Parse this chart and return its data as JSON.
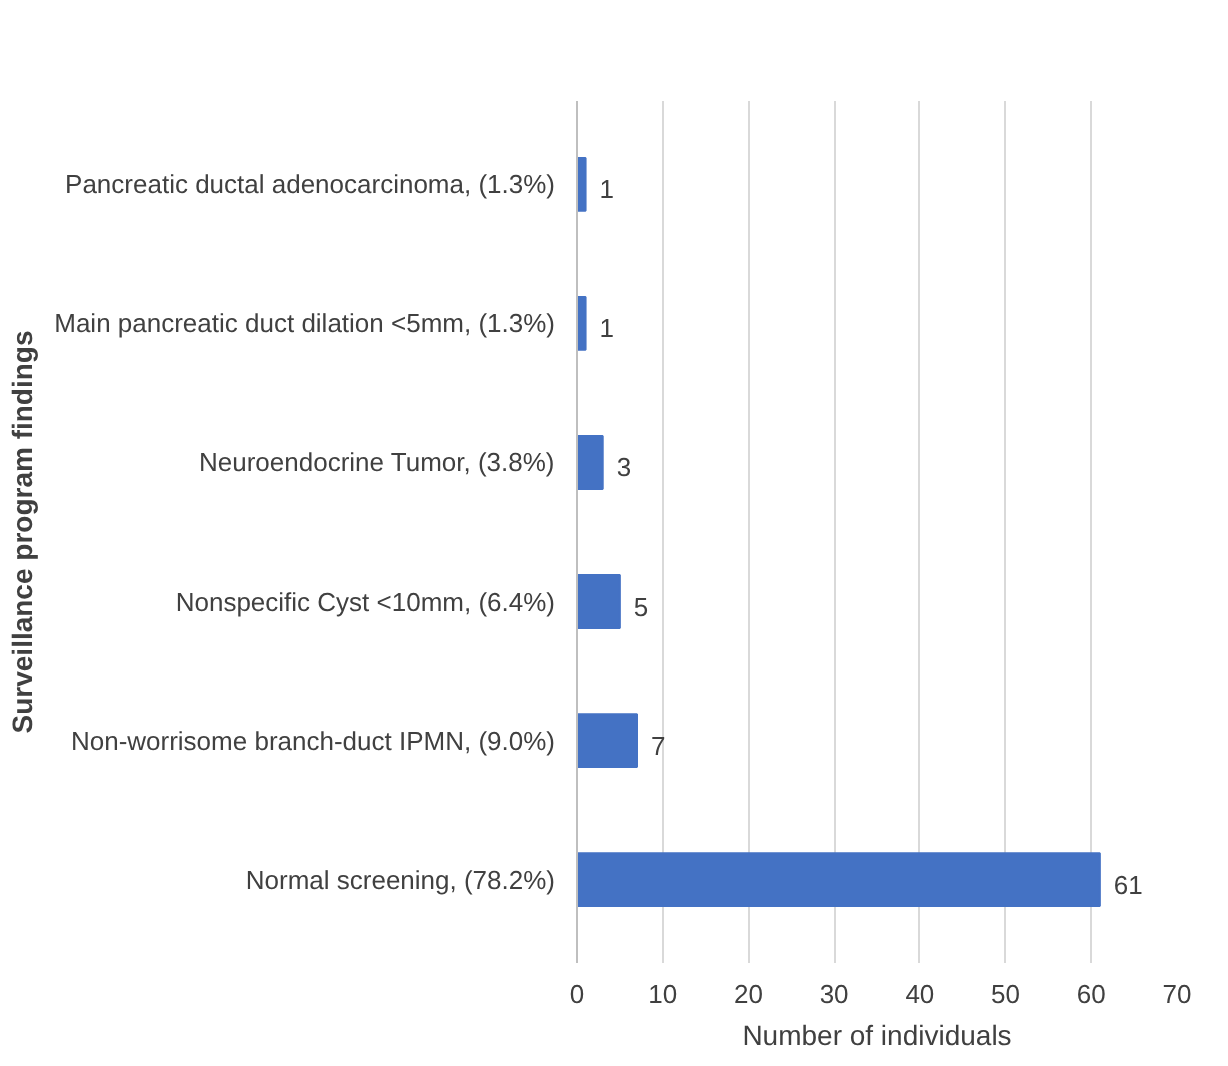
{
  "chart_data": {
    "type": "bar",
    "orientation": "horizontal",
    "categories": [
      "Pancreatic ductal adenocarcinoma, (1.3%)",
      "Main pancreatic duct dilation <5mm, (1.3%)",
      "Neuroendocrine Tumor, (3.8%)",
      "Nonspecific Cyst <10mm, (6.4%)",
      "Non-worrisome branch-duct IPMN, (9.0%)",
      "Normal screening, (78.2%)"
    ],
    "values": [
      1,
      1,
      3,
      5,
      7,
      61
    ],
    "color": "#4472c4",
    "xlim": [
      0,
      70
    ],
    "xticks": [
      0,
      10,
      20,
      30,
      40,
      50,
      60,
      70
    ],
    "xlabel": "Number of individuals",
    "ylabel": "Surveillance program findings",
    "grid": "x",
    "data_labels": true
  }
}
